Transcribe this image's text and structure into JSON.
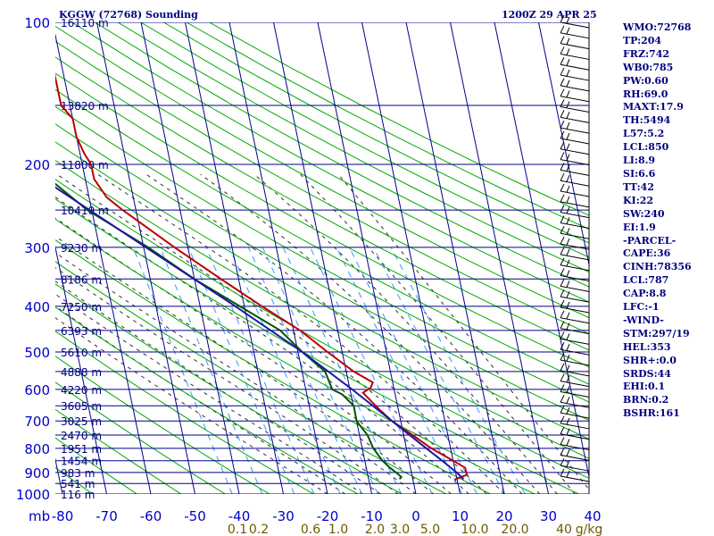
{
  "header": {
    "station": "KGGW (72768) Sounding",
    "valid": "1200Z 29 APR 25"
  },
  "indices": [
    "WMO:72768",
    "TP:204",
    "FRZ:742",
    "WB0:785",
    "PW:0.60",
    "RH:69.0",
    "MAXT:17.9",
    "TH:5494",
    "L57:5.2",
    "LCL:850",
    "LI:8.9",
    "SI:6.6",
    "TT:42",
    "KI:22",
    "SW:240",
    "EI:1.9",
    "-PARCEL-",
    "CAPE:36",
    "CINH:78356",
    "LCL:787",
    "CAP:8.8",
    "LFC:-1",
    "-WIND-",
    "STM:297/19",
    "HEL:353",
    "SHR+:0.0",
    "SRDS:44",
    "EHI:0.1",
    "BRN:0.2",
    "BSHR:161"
  ],
  "colors": {
    "isobar": "#00008b",
    "isotherm": "#00008b",
    "dry_adiabat": "#00aa00",
    "moist_adiabat": "#2f2f2f",
    "mixing_ratio": "#3399ff",
    "temperature": "#bb0000",
    "dewpoint": "#005500",
    "parcel": "#1a1aa0",
    "wind": "#000000"
  },
  "chart_data": {
    "type": "line",
    "subtype": "skew-T log-P sounding",
    "pressure_unit_label": "mb",
    "pressure_levels": [
      100,
      200,
      300,
      400,
      500,
      600,
      700,
      800,
      900,
      1000
    ],
    "pressure_tick_labels": [
      "100",
      "200",
      "300",
      "400",
      "500",
      "600",
      "700",
      "800",
      "900",
      "1000"
    ],
    "temperature_ticks": [
      -80,
      -70,
      -60,
      -50,
      -40,
      -30,
      -20,
      -10,
      0,
      10,
      20,
      30,
      40
    ],
    "temperature_tick_labels": [
      "-80",
      "-70",
      "-60",
      "-50",
      "-40",
      "-30",
      "-20",
      "-10",
      "0",
      "10",
      "20",
      "30",
      "40"
    ],
    "isotherm_skew_per_decade": 110,
    "height_labels": [
      {
        "p": 100,
        "label": "16110 m"
      },
      {
        "p": 150,
        "label": "13820 m"
      },
      {
        "p": 200,
        "label": "11800 m"
      },
      {
        "p": 250,
        "label": "10410 m"
      },
      {
        "p": 300,
        "label": "9230 m"
      },
      {
        "p": 350,
        "label": "8186 m"
      },
      {
        "p": 400,
        "label": "7250 m"
      },
      {
        "p": 450,
        "label": "6393 m"
      },
      {
        "p": 500,
        "label": "5610 m"
      },
      {
        "p": 550,
        "label": "4888 m"
      },
      {
        "p": 600,
        "label": "4220 m"
      },
      {
        "p": 650,
        "label": "3605 m"
      },
      {
        "p": 700,
        "label": "3025 m"
      },
      {
        "p": 750,
        "label": "2470 m"
      },
      {
        "p": 800,
        "label": "1951 m"
      },
      {
        "p": 850,
        "label": "1454 m"
      },
      {
        "p": 900,
        "label": "983 m"
      },
      {
        "p": 950,
        "label": "541 m"
      },
      {
        "p": 1000,
        "label": "116 m"
      }
    ],
    "mixing_ratio_labels": [
      "0.1",
      "0.2",
      "0.6",
      "1.0",
      "2.0",
      "3.0",
      "5.0",
      "10.0",
      "20.0",
      "40",
      "g/kg"
    ],
    "series": [
      {
        "name": "temperature",
        "points": [
          [
            100,
            -63
          ],
          [
            120,
            -62
          ],
          [
            130,
            -62
          ],
          [
            140,
            -62
          ],
          [
            150,
            -62
          ],
          [
            160,
            -60
          ],
          [
            175,
            -60
          ],
          [
            190,
            -59
          ],
          [
            200,
            -58
          ],
          [
            215,
            -58
          ],
          [
            235,
            -56
          ],
          [
            250,
            -53
          ],
          [
            300,
            -43
          ],
          [
            350,
            -34
          ],
          [
            400,
            -26
          ],
          [
            450,
            -18.5
          ],
          [
            500,
            -13.3
          ],
          [
            550,
            -8.3
          ],
          [
            580,
            -4.5
          ],
          [
            595,
            -5.2
          ],
          [
            610,
            -7.2
          ],
          [
            660,
            -4.4
          ],
          [
            700,
            -2.0
          ],
          [
            750,
            2.0
          ],
          [
            800,
            5.6
          ],
          [
            850,
            10.0
          ],
          [
            880,
            12.4
          ],
          [
            900,
            12.4
          ],
          [
            910,
            12.5
          ],
          [
            930,
            9.7
          ],
          [
            935,
            9.5
          ]
        ]
      },
      {
        "name": "dewpoint",
        "points": [
          [
            100,
            -81
          ],
          [
            130,
            -80
          ],
          [
            150,
            -79.7
          ],
          [
            170,
            -76.5
          ],
          [
            190,
            -74.8
          ],
          [
            200,
            -73
          ],
          [
            220,
            -67
          ],
          [
            250,
            -61
          ],
          [
            300,
            -49
          ],
          [
            350,
            -40
          ],
          [
            400,
            -31
          ],
          [
            450,
            -23
          ],
          [
            500,
            -19
          ],
          [
            550,
            -14.8
          ],
          [
            600,
            -14
          ],
          [
            615,
            -12
          ],
          [
            650,
            -9.9
          ],
          [
            700,
            -10
          ],
          [
            750,
            -8.2
          ],
          [
            800,
            -7.5
          ],
          [
            850,
            -6
          ],
          [
            880,
            -4.6
          ],
          [
            900,
            -3.5
          ],
          [
            920,
            -2.5
          ],
          [
            930,
            -3
          ]
        ]
      },
      {
        "name": "parcel",
        "points": [
          [
            200,
            -74
          ],
          [
            300,
            -49.5
          ],
          [
            400,
            -32
          ],
          [
            500,
            -19
          ],
          [
            600,
            -9.5
          ],
          [
            700,
            -2
          ],
          [
            800,
            4.5
          ],
          [
            850,
            7.5
          ],
          [
            900,
            10.2
          ],
          [
            930,
            11.5
          ]
        ]
      }
    ],
    "wind_barbs_count": 44
  }
}
